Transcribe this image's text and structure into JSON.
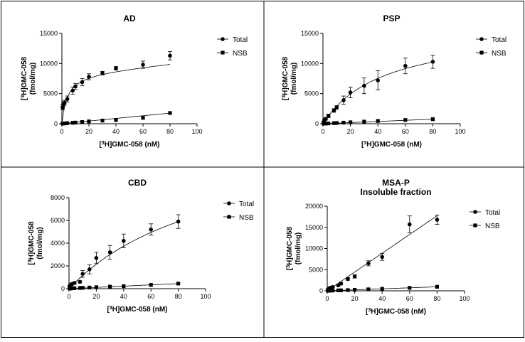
{
  "chart_data": [
    {
      "panel": "AD",
      "type": "scatter",
      "title": "AD",
      "xlabel_sup": "3",
      "xlabel_pre": "[",
      "xlabel_post": "H]GMC-058 (nM)",
      "ylabel_line1_pre": "[",
      "ylabel_line1_sup": "3",
      "ylabel_line1_post": "H]GMC-058",
      "ylabel_line2": "(fmol/mg)",
      "xlim": [
        0,
        100
      ],
      "ylim": [
        0,
        15000
      ],
      "xticks": [
        0,
        20,
        40,
        60,
        80,
        100
      ],
      "yticks": [
        0,
        5000,
        10000,
        15000
      ],
      "series": [
        {
          "name": "Total",
          "marker": "circle",
          "x": [
            0.5,
            1,
            2,
            4,
            8,
            10,
            15,
            20,
            30,
            40,
            60,
            80
          ],
          "y": [
            2700,
            3200,
            3500,
            4100,
            5500,
            6200,
            6900,
            7800,
            8400,
            9200,
            9800,
            11300
          ],
          "err": [
            400,
            400,
            400,
            500,
            600,
            500,
            600,
            500,
            300,
            300,
            600,
            700
          ],
          "fit": "hyperbola_linear",
          "fit_params": {
            "bmax": 8500,
            "kd": 4,
            "ns": 22
          }
        },
        {
          "name": "NSB",
          "marker": "square",
          "x": [
            0.5,
            1,
            2,
            4,
            8,
            10,
            15,
            20,
            30,
            40,
            60,
            80
          ],
          "y": [
            20,
            40,
            50,
            90,
            150,
            190,
            280,
            390,
            520,
            620,
            980,
            1780
          ],
          "err": [
            0,
            0,
            0,
            0,
            0,
            0,
            0,
            0,
            0,
            0,
            0,
            0
          ],
          "fit": "linear",
          "fit_params": {
            "slope": 22
          }
        }
      ]
    },
    {
      "panel": "PSP",
      "type": "scatter",
      "title": "PSP",
      "xlabel_sup": "3",
      "xlabel_pre": "[",
      "xlabel_post": "H]GMC-058 (nM)",
      "ylabel_line1_pre": "[",
      "ylabel_line1_sup": "3",
      "ylabel_line1_post": "H]GMC-058",
      "ylabel_line2": "(fmol/mg)",
      "xlim": [
        0,
        100
      ],
      "ylim": [
        0,
        15000
      ],
      "xticks": [
        0,
        20,
        40,
        60,
        80,
        100
      ],
      "yticks": [
        0,
        5000,
        10000,
        15000
      ],
      "series": [
        {
          "name": "Total",
          "marker": "circle",
          "x": [
            0.5,
            1,
            2,
            4,
            8,
            10,
            15,
            20,
            30,
            40,
            60,
            80
          ],
          "y": [
            300,
            600,
            800,
            1300,
            2200,
            2700,
            3900,
            5200,
            6300,
            7200,
            9600,
            10300
          ],
          "err": [
            100,
            100,
            200,
            300,
            300,
            300,
            700,
            900,
            1300,
            1600,
            1300,
            1100
          ],
          "fit": "hyperbola_linear",
          "fit_params": {
            "bmax": 16000,
            "kd": 45,
            "ns": 0
          }
        },
        {
          "name": "NSB",
          "marker": "square",
          "x": [
            0.5,
            1,
            2,
            4,
            8,
            10,
            15,
            20,
            30,
            40,
            60,
            80
          ],
          "y": [
            10,
            20,
            30,
            50,
            100,
            120,
            180,
            240,
            350,
            460,
            620,
            750
          ],
          "err": [
            0,
            0,
            0,
            0,
            0,
            0,
            0,
            0,
            0,
            0,
            0,
            0
          ],
          "fit": "linear",
          "fit_params": {
            "slope": 9.4
          }
        }
      ]
    },
    {
      "panel": "CBD",
      "type": "scatter",
      "title": "CBD",
      "xlabel_sup": "3",
      "xlabel_pre": "[",
      "xlabel_post": "H]GMC-058 (nM)",
      "ylabel_line1_pre": "[",
      "ylabel_line1_sup": "3",
      "ylabel_line1_post": "H]GMC-058",
      "ylabel_line2": "(fmol/mg)",
      "xlim": [
        0,
        100
      ],
      "ylim": [
        0,
        8000
      ],
      "xticks": [
        0,
        20,
        40,
        60,
        80,
        100
      ],
      "yticks": [
        0,
        2000,
        4000,
        6000,
        8000
      ],
      "series": [
        {
          "name": "Total",
          "marker": "circle",
          "x": [
            0.5,
            1,
            2,
            4,
            8,
            10,
            15,
            20,
            30,
            40,
            60,
            80
          ],
          "y": [
            200,
            300,
            400,
            500,
            600,
            1300,
            1700,
            2700,
            3200,
            4200,
            5200,
            5900
          ],
          "err": [
            100,
            100,
            100,
            100,
            100,
            300,
            400,
            500,
            600,
            600,
            500,
            600
          ],
          "fit": "hyperbola_linear",
          "fit_params": {
            "bmax": 14000,
            "kd": 110,
            "ns": 0
          }
        },
        {
          "name": "NSB",
          "marker": "square",
          "x": [
            0.5,
            1,
            2,
            4,
            8,
            10,
            15,
            20,
            30,
            40,
            60,
            80
          ],
          "y": [
            10,
            20,
            30,
            40,
            60,
            80,
            100,
            130,
            180,
            220,
            330,
            450
          ],
          "err": [
            0,
            0,
            0,
            0,
            0,
            0,
            0,
            0,
            0,
            0,
            0,
            0
          ],
          "fit": "linear",
          "fit_params": {
            "slope": 5.6
          }
        }
      ]
    },
    {
      "panel": "MSA-P",
      "type": "scatter",
      "title": "MSA-P",
      "subtitle": "Insoluble fraction",
      "xlabel_sup": "3",
      "xlabel_pre": "[",
      "xlabel_post": "H]GMC-058 (nM)",
      "ylabel_line1_pre": "[",
      "ylabel_line1_sup": "3",
      "ylabel_line1_post": "H]GMC-058",
      "ylabel_line2": "(fmol/mg)",
      "xlim": [
        0,
        100
      ],
      "ylim": [
        0,
        20000
      ],
      "xticks": [
        0,
        20,
        40,
        60,
        80,
        100
      ],
      "yticks": [
        0,
        5000,
        10000,
        15000,
        20000
      ],
      "series": [
        {
          "name": "Total",
          "marker": "circle",
          "x": [
            0.5,
            1,
            2,
            4,
            8,
            10,
            15,
            20,
            30,
            40,
            60,
            80
          ],
          "y": [
            300,
            500,
            700,
            900,
            1300,
            1700,
            2800,
            3400,
            6500,
            8000,
            15700,
            16800
          ],
          "err": [
            100,
            100,
            100,
            200,
            200,
            300,
            300,
            400,
            600,
            800,
            2000,
            1100
          ],
          "fit": "linear",
          "fit_params": {
            "slope": 222
          }
        },
        {
          "name": "NSB",
          "marker": "square",
          "x": [
            0.5,
            1,
            2,
            4,
            8,
            10,
            15,
            20,
            30,
            40,
            60,
            80
          ],
          "y": [
            10,
            20,
            40,
            60,
            100,
            120,
            180,
            240,
            350,
            470,
            700,
            950
          ],
          "err": [
            0,
            0,
            0,
            0,
            0,
            0,
            0,
            0,
            0,
            0,
            0,
            0
          ],
          "fit": "linear",
          "fit_params": {
            "slope": 11.8
          }
        }
      ]
    }
  ]
}
